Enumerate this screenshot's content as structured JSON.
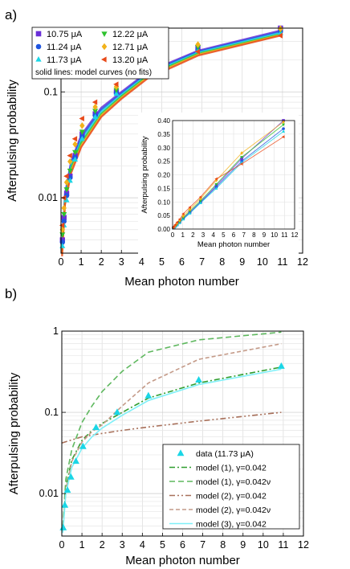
{
  "panels": [
    {
      "label": "a)",
      "type": "scatter",
      "xlabel": "Mean photon number",
      "ylabel": "Afterpulsing probability",
      "xlim": [
        0,
        12
      ],
      "ylim": [
        0.003,
        0.4
      ],
      "yscale": "log",
      "xticks": [
        0,
        1,
        2,
        3,
        4,
        5,
        6,
        7,
        8,
        9,
        10,
        11,
        12
      ],
      "yticks": [
        {
          "v": 0.01,
          "label": "0.01"
        },
        {
          "v": 0.1,
          "label": "0.1"
        }
      ],
      "grid": true,
      "legend_note": "solid lines: model curves (no fits)",
      "series": [
        {
          "name": "10.75 μA",
          "color": "#6a2fd8",
          "marker": "square",
          "x": [
            0.07,
            0.15,
            0.28,
            0.45,
            0.7,
            1.05,
            1.7,
            2.75,
            4.3,
            6.8,
            10.9
          ],
          "y": [
            0.004,
            0.0065,
            0.011,
            0.016,
            0.025,
            0.04,
            0.062,
            0.1,
            0.16,
            0.26,
            0.4
          ]
        },
        {
          "name": "11.24 μA",
          "color": "#1f55e0",
          "marker": "circle",
          "x": [
            0.07,
            0.15,
            0.28,
            0.45,
            0.7,
            1.05,
            1.7,
            2.75,
            4.3,
            6.8,
            10.9
          ],
          "y": [
            0.0038,
            0.006,
            0.0105,
            0.0155,
            0.024,
            0.038,
            0.06,
            0.098,
            0.155,
            0.25,
            0.37
          ]
        },
        {
          "name": "11.73 μA",
          "color": "#1ad6e6",
          "marker": "triangle-up",
          "x": [
            0.07,
            0.15,
            0.28,
            0.45,
            0.7,
            1.05,
            1.7,
            2.75,
            4.3,
            6.8,
            10.9
          ],
          "y": [
            0.0035,
            0.0055,
            0.0095,
            0.0145,
            0.023,
            0.036,
            0.058,
            0.096,
            0.15,
            0.245,
            0.36
          ]
        },
        {
          "name": "12.22 μA",
          "color": "#2ec22e",
          "marker": "triangle-down",
          "x": [
            0.07,
            0.15,
            0.28,
            0.45,
            0.7,
            1.05,
            1.7,
            2.75,
            4.3,
            6.8,
            10.9
          ],
          "y": [
            0.0045,
            0.007,
            0.012,
            0.018,
            0.027,
            0.042,
            0.066,
            0.104,
            0.165,
            0.265,
            0.385
          ]
        },
        {
          "name": "12.71 μA",
          "color": "#f2b21a",
          "marker": "diamond",
          "x": [
            0.07,
            0.15,
            0.28,
            0.45,
            0.7,
            1.05,
            1.7,
            2.75,
            4.3,
            6.8,
            10.9
          ],
          "y": [
            0.005,
            0.008,
            0.014,
            0.022,
            0.032,
            0.048,
            0.072,
            0.112,
            0.18,
            0.28,
            0.395
          ]
        },
        {
          "name": "13.20 μA",
          "color": "#e84a1a",
          "marker": "triangle-left",
          "x": [
            0.07,
            0.15,
            0.28,
            0.45,
            0.7,
            1.05,
            1.7,
            2.75,
            4.3,
            6.8,
            10.9
          ],
          "y": [
            0.0055,
            0.01,
            0.016,
            0.025,
            0.036,
            0.056,
            0.08,
            0.118,
            0.185,
            0.24,
            0.34
          ]
        }
      ],
      "model_curves": [
        {
          "color": "#6a2fd8",
          "x": [
            0.05,
            0.2,
            0.5,
            1,
            2,
            3,
            4.3,
            6.8,
            10.9
          ],
          "y": [
            0.0035,
            0.011,
            0.022,
            0.039,
            0.071,
            0.1,
            0.155,
            0.245,
            0.38
          ]
        },
        {
          "color": "#1f55e0",
          "x": [
            0.05,
            0.2,
            0.5,
            1,
            2,
            3,
            4.3,
            6.8,
            10.9
          ],
          "y": [
            0.0033,
            0.0105,
            0.021,
            0.037,
            0.068,
            0.097,
            0.15,
            0.24,
            0.37
          ]
        },
        {
          "color": "#1ad6e6",
          "x": [
            0.05,
            0.2,
            0.5,
            1,
            2,
            3,
            4.3,
            6.8,
            10.9
          ],
          "y": [
            0.0031,
            0.0099,
            0.02,
            0.035,
            0.065,
            0.094,
            0.146,
            0.235,
            0.36
          ]
        },
        {
          "color": "#2ec22e",
          "x": [
            0.05,
            0.2,
            0.5,
            1,
            2,
            3,
            4.3,
            6.8,
            10.9
          ],
          "y": [
            0.003,
            0.0095,
            0.019,
            0.033,
            0.062,
            0.091,
            0.142,
            0.23,
            0.35
          ]
        },
        {
          "color": "#f2b21a",
          "x": [
            0.05,
            0.2,
            0.5,
            1,
            2,
            3,
            4.3,
            6.8,
            10.9
          ],
          "y": [
            0.0029,
            0.009,
            0.018,
            0.031,
            0.06,
            0.088,
            0.138,
            0.225,
            0.345
          ]
        },
        {
          "color": "#e84a1a",
          "x": [
            0.05,
            0.2,
            0.5,
            1,
            2,
            3,
            4.3,
            6.8,
            10.9
          ],
          "y": [
            0.0028,
            0.0086,
            0.017,
            0.03,
            0.058,
            0.086,
            0.134,
            0.22,
            0.34
          ]
        }
      ],
      "inset": {
        "xlabel": "Mean photon number",
        "ylabel": "Afterpulsing probability",
        "xlim": [
          0,
          12
        ],
        "ylim": [
          0,
          0.4
        ],
        "xticks": [
          0,
          1,
          2,
          3,
          4,
          5,
          6,
          7,
          8,
          9,
          10,
          11,
          12
        ],
        "yticks": [
          "0.00",
          "0.05",
          "0.10",
          "0.15",
          "0.20",
          "0.25",
          "0.30",
          "0.35",
          "0.40"
        ],
        "grid": true
      }
    },
    {
      "label": "b)",
      "type": "line",
      "xlabel": "Mean photon number",
      "ylabel": "Afterpulsing probability",
      "xlim": [
        0,
        12
      ],
      "ylim": [
        0.003,
        1
      ],
      "yscale": "log",
      "xticks": [
        0,
        1,
        2,
        3,
        4,
        5,
        6,
        7,
        8,
        9,
        10,
        11,
        12
      ],
      "yticks": [
        {
          "v": 0.01,
          "label": "0.01"
        },
        {
          "v": 0.1,
          "label": "0.1"
        },
        {
          "v": 1,
          "label": "1"
        }
      ],
      "grid": true,
      "data": {
        "name": "data (11.73 μA)",
        "color": "#1ad6e6",
        "x": [
          0.07,
          0.15,
          0.28,
          0.45,
          0.7,
          1.05,
          1.7,
          2.75,
          4.3,
          6.8,
          10.9
        ],
        "y": [
          0.0038,
          0.0072,
          0.011,
          0.016,
          0.025,
          0.038,
          0.065,
          0.1,
          0.16,
          0.25,
          0.37
        ]
      },
      "models": [
        {
          "name": "model (1), γ=0.042",
          "color": "#2f9e2f",
          "dash": "7,3,2,3",
          "x": [
            0.05,
            0.2,
            0.5,
            1,
            1.5,
            2,
            3,
            4.3,
            6.8,
            10.9
          ],
          "y": [
            0.0035,
            0.012,
            0.026,
            0.045,
            0.06,
            0.073,
            0.1,
            0.15,
            0.23,
            0.36
          ]
        },
        {
          "name": "model (1), γ=0.042ν",
          "color": "#5fb85f",
          "dash": "7,4",
          "x": [
            0.05,
            0.2,
            0.5,
            1,
            1.5,
            2,
            3,
            4.3,
            6.8,
            10.9
          ],
          "y": [
            0.004,
            0.015,
            0.035,
            0.075,
            0.12,
            0.18,
            0.32,
            0.55,
            0.78,
            0.97
          ]
        },
        {
          "name": "model (2), γ=0.042",
          "color": "#a8705a",
          "dash": "7,3,2,3,2,3",
          "x": [
            0,
            1,
            2,
            3,
            4.3,
            6.8,
            10.9
          ],
          "y": [
            0.042,
            0.05,
            0.055,
            0.06,
            0.066,
            0.078,
            0.1
          ]
        },
        {
          "name": "model (2), γ=0.042ν",
          "color": "#c49a88",
          "dash": "5,3",
          "x": [
            0.05,
            0.2,
            0.5,
            1,
            1.5,
            2,
            3,
            4.3,
            6.8,
            10.9
          ],
          "y": [
            0.0034,
            0.011,
            0.025,
            0.043,
            0.058,
            0.07,
            0.12,
            0.23,
            0.45,
            0.7
          ]
        },
        {
          "name": "model (3), γ=0.042",
          "color": "#7ff0f8",
          "dash": "",
          "x": [
            0.05,
            0.2,
            0.5,
            1,
            1.5,
            2,
            3,
            4.3,
            6.8,
            10.9
          ],
          "y": [
            0.0033,
            0.01,
            0.021,
            0.036,
            0.05,
            0.064,
            0.092,
            0.14,
            0.22,
            0.34
          ]
        }
      ]
    }
  ],
  "chart_data": [
    {
      "type": "scatter",
      "xlabel": "Mean photon number",
      "ylabel": "Afterpulsing probability",
      "xlim": [
        0,
        12
      ],
      "ylim": [
        0.003,
        0.4
      ],
      "yscale": "log"
    },
    {
      "type": "line",
      "xlabel": "Mean photon number",
      "ylabel": "Afterpulsing probability",
      "xlim": [
        0,
        12
      ],
      "ylim": [
        0.003,
        1
      ],
      "yscale": "log"
    }
  ]
}
